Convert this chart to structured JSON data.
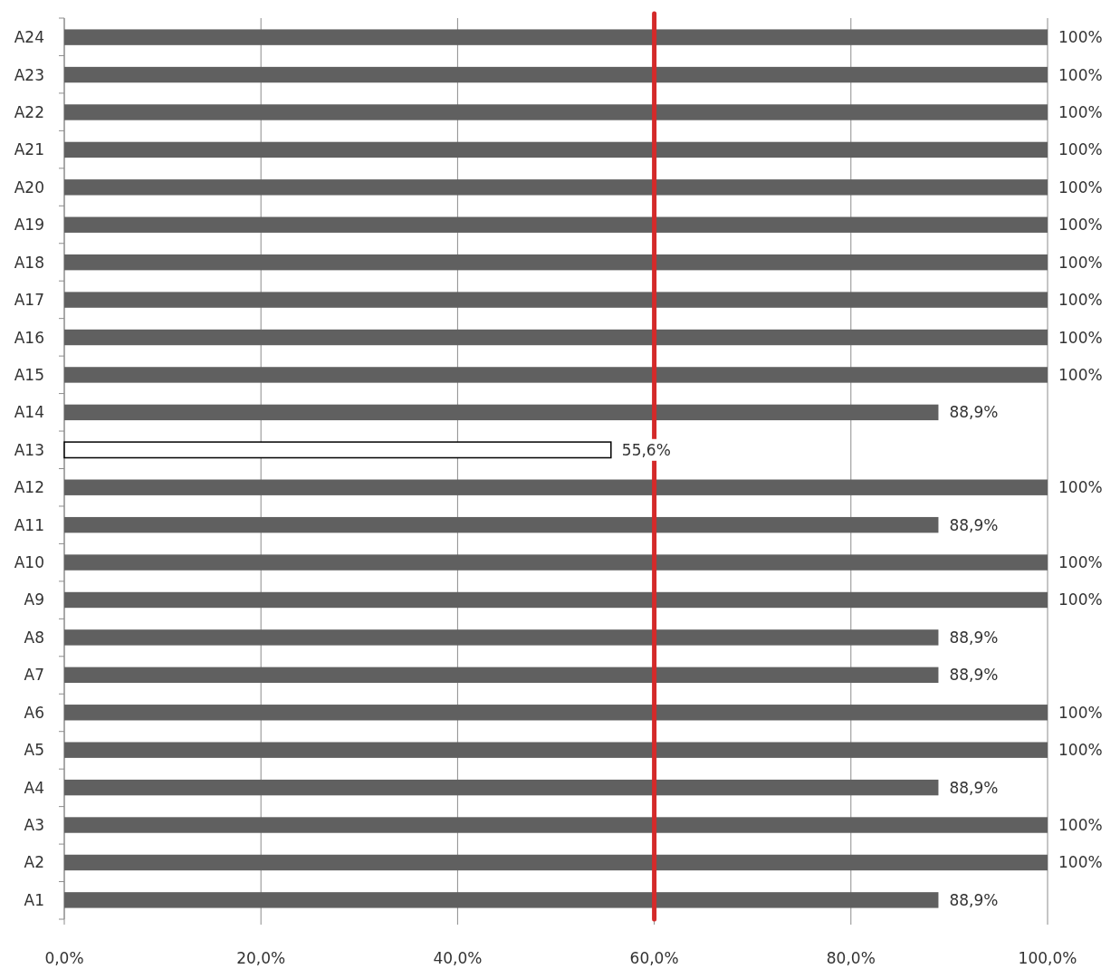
{
  "chart_data": {
    "type": "bar",
    "orientation": "horizontal",
    "categories": [
      "A24",
      "A23",
      "A22",
      "A21",
      "A20",
      "A19",
      "A18",
      "A17",
      "A16",
      "A15",
      "A14",
      "A13",
      "A12",
      "A11",
      "A10",
      "A9",
      "A8",
      "A7",
      "A6",
      "A5",
      "A4",
      "A3",
      "A2",
      "A1"
    ],
    "values": [
      100,
      100,
      100,
      100,
      100,
      100,
      100,
      100,
      100,
      100,
      88.9,
      55.6,
      100,
      88.9,
      100,
      100,
      88.9,
      88.9,
      100,
      100,
      88.9,
      100,
      100,
      88.9
    ],
    "value_labels": [
      "100%",
      "100%",
      "100%",
      "100%",
      "100%",
      "100%",
      "100%",
      "100%",
      "100%",
      "100%",
      "88,9%",
      "55,6%",
      "100%",
      "88,9%",
      "100%",
      "100%",
      "88,9%",
      "88,9%",
      "100%",
      "100%",
      "88,9%",
      "100%",
      "100%",
      "88,9%"
    ],
    "colors": [
      "#606060",
      "#606060",
      "#606060",
      "#606060",
      "#606060",
      "#606060",
      "#606060",
      "#606060",
      "#606060",
      "#606060",
      "#606060",
      "#ffffff",
      "#606060",
      "#606060",
      "#606060",
      "#606060",
      "#606060",
      "#606060",
      "#606060",
      "#606060",
      "#606060",
      "#606060",
      "#606060",
      "#606060"
    ],
    "xlim": [
      0,
      100
    ],
    "xticks": [
      {
        "value": 0,
        "label": "0,0%"
      },
      {
        "value": 20,
        "label": "20,0%"
      },
      {
        "value": 40,
        "label": "40,0%"
      },
      {
        "value": 60,
        "label": "60,0%"
      },
      {
        "value": 80,
        "label": "80,0%"
      },
      {
        "value": 100,
        "label": "100,0%"
      }
    ],
    "ref_lines": [
      {
        "axis": "x",
        "value": 60,
        "color": "#d42a2a"
      }
    ],
    "grid": "x"
  }
}
